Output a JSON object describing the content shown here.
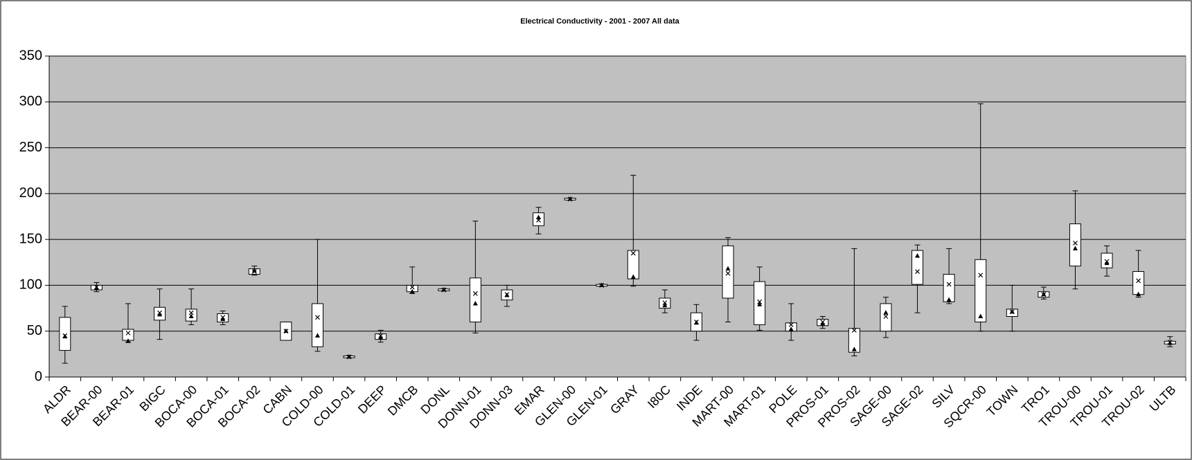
{
  "chart_data": {
    "type": "box",
    "title": "Electrical Conductivity - 2001 - 2007 All data",
    "categories": [
      "ALDR",
      "BEAR-00",
      "BEAR-01",
      "BIGC",
      "BOCA-00",
      "BOCA-01",
      "BOCA-02",
      "CABN",
      "COLD-00",
      "COLD-01",
      "DEEP",
      "DMCB",
      "DONL",
      "DONN-01",
      "DONN-03",
      "EMAR",
      "GLEN-00",
      "GLEN-01",
      "GRAY",
      "I80C",
      "INDE",
      "MART-00",
      "MART-01",
      "POLE",
      "PROS-01",
      "PROS-02",
      "SAGE-00",
      "SAGE-02",
      "SILV",
      "SQCR-00",
      "TOWN",
      "TRO1",
      "TROU-00",
      "TROU-01",
      "TROU-02",
      "ULTB"
    ],
    "min": [
      15,
      93,
      38,
      41,
      57,
      57,
      111,
      40,
      28,
      21,
      38,
      91,
      94,
      48,
      77,
      156,
      193,
      99,
      99,
      70,
      40,
      60,
      51,
      40,
      53,
      23,
      43,
      70,
      80,
      50,
      50,
      85,
      96,
      110,
      87,
      33
    ],
    "q1": [
      29,
      95,
      40,
      62,
      61,
      60,
      112,
      40,
      33,
      21,
      41,
      93,
      94,
      60,
      84,
      165,
      193,
      99,
      107,
      75,
      50,
      86,
      57,
      50,
      56,
      27,
      50,
      101,
      82,
      60,
      66,
      87,
      121,
      119,
      90,
      36
    ],
    "q3": [
      65,
      100,
      52,
      76,
      74,
      69,
      118,
      60,
      80,
      23,
      47,
      100,
      96,
      108,
      95,
      179,
      195,
      101,
      138,
      86,
      70,
      143,
      104,
      59,
      63,
      53,
      80,
      138,
      112,
      128,
      74,
      93,
      167,
      135,
      115,
      39
    ],
    "max": [
      77,
      103,
      80,
      96,
      96,
      72,
      121,
      60,
      150,
      23,
      51,
      120,
      96,
      170,
      100,
      185,
      195,
      101,
      220,
      95,
      79,
      152,
      120,
      80,
      66,
      140,
      87,
      144,
      140,
      298,
      100,
      98,
      203,
      143,
      138,
      44
    ],
    "mean": [
      45,
      98,
      48,
      70,
      70,
      65,
      115,
      50,
      65,
      22,
      45,
      98,
      95,
      91,
      90,
      171,
      194,
      100,
      135,
      81,
      60,
      113,
      82,
      57,
      60,
      51,
      66,
      115,
      101,
      111,
      71,
      90,
      146,
      126,
      105,
      38
    ],
    "median": [
      44,
      97,
      39,
      68,
      66,
      63,
      116,
      50,
      45,
      22,
      43,
      93,
      95,
      80,
      89,
      174,
      194,
      100,
      109,
      78,
      59,
      118,
      79,
      52,
      58,
      30,
      70,
      132,
      84,
      66,
      71,
      90,
      140,
      124,
      90,
      37
    ],
    "ylim": [
      0,
      350
    ],
    "yticks": [
      0,
      50,
      100,
      150,
      200,
      250,
      300,
      350
    ],
    "grid": true,
    "plot_background": "#c0c0c0",
    "box_color": "#ffffff"
  }
}
